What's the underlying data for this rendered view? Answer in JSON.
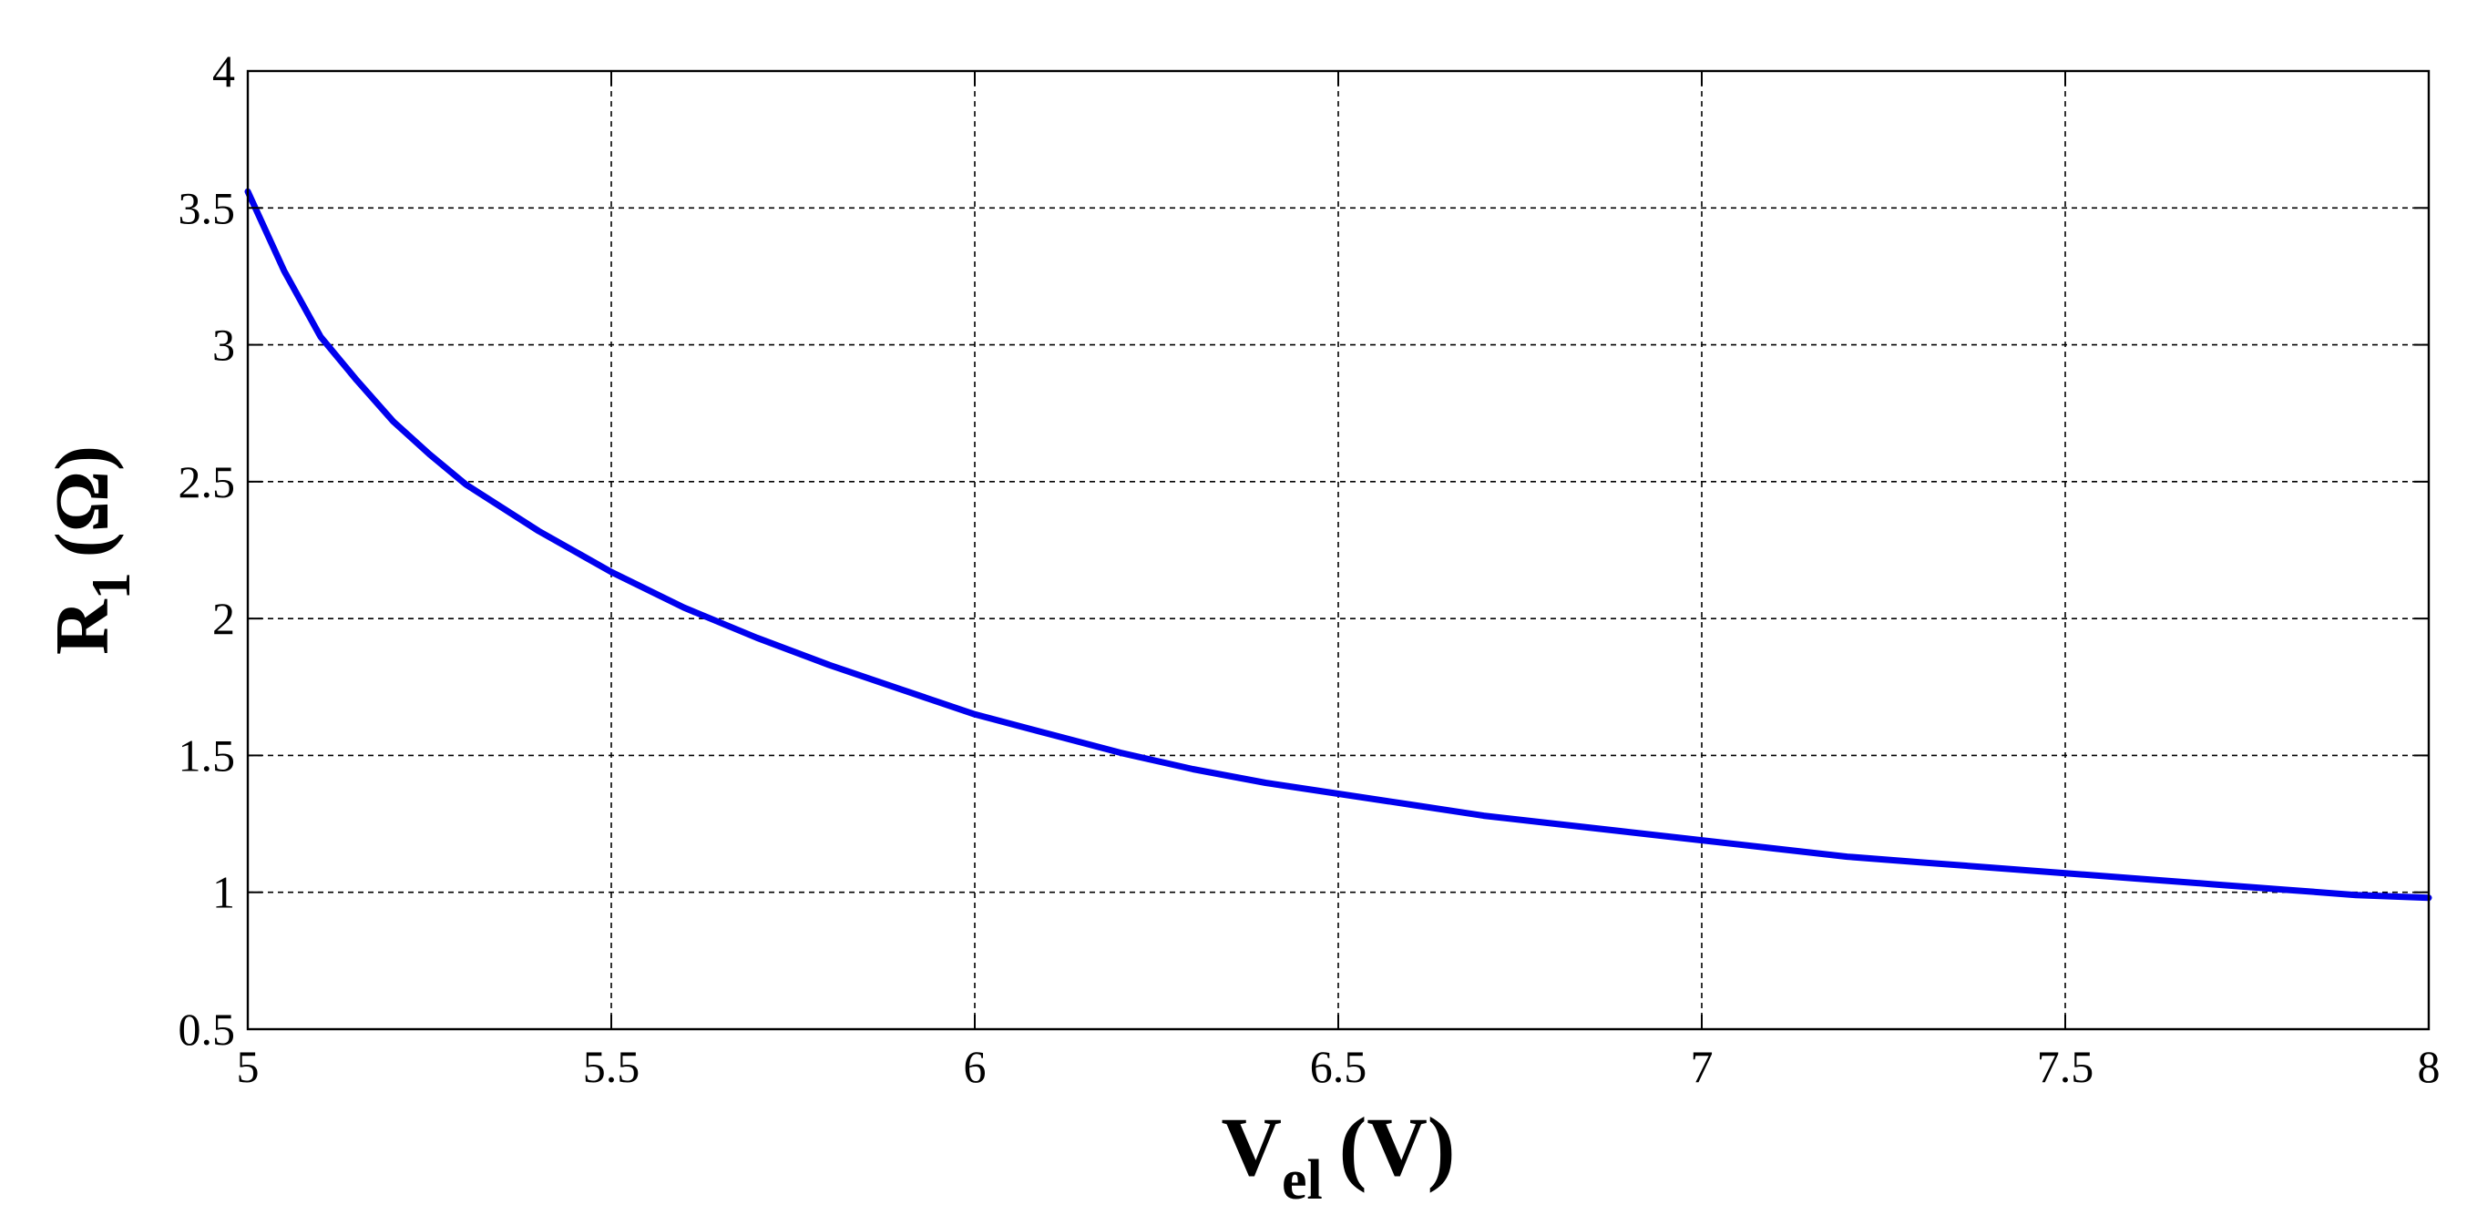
{
  "chart_data": {
    "type": "line",
    "title": "",
    "xlabel": {
      "main": "V",
      "sub": "el",
      "unit": "(V)"
    },
    "ylabel": {
      "main": "R",
      "sub": "1",
      "unit": "(Ω)"
    },
    "xlim": [
      5,
      8
    ],
    "ylim": [
      0.5,
      4
    ],
    "xticks": [
      5,
      5.5,
      6,
      6.5,
      7,
      7.5,
      8
    ],
    "yticks": [
      0.5,
      1,
      1.5,
      2,
      2.5,
      3,
      3.5,
      4
    ],
    "xtick_labels": [
      "5",
      "5.5",
      "6",
      "6.5",
      "7",
      "7.5",
      "8"
    ],
    "ytick_labels": [
      "0.5",
      "1",
      "1.5",
      "2",
      "2.5",
      "3",
      "3.5",
      "4"
    ],
    "grid": true,
    "grid_style": "dashed",
    "legend": "none",
    "series": [
      {
        "color": "#0000ee",
        "x": [
          5.0,
          5.05,
          5.1,
          5.15,
          5.2,
          5.25,
          5.3,
          5.4,
          5.5,
          5.6,
          5.7,
          5.8,
          5.9,
          6.0,
          6.1,
          6.2,
          6.3,
          6.4,
          6.5,
          6.6,
          6.7,
          6.8,
          6.9,
          7.0,
          7.1,
          7.2,
          7.3,
          7.4,
          7.5,
          7.6,
          7.7,
          7.8,
          7.9,
          8.0
        ],
        "y": [
          3.56,
          3.27,
          3.03,
          2.87,
          2.72,
          2.6,
          2.49,
          2.32,
          2.17,
          2.04,
          1.93,
          1.83,
          1.74,
          1.65,
          1.58,
          1.51,
          1.45,
          1.4,
          1.36,
          1.32,
          1.28,
          1.25,
          1.22,
          1.19,
          1.16,
          1.13,
          1.11,
          1.09,
          1.07,
          1.05,
          1.03,
          1.01,
          0.99,
          0.98
        ]
      }
    ]
  }
}
